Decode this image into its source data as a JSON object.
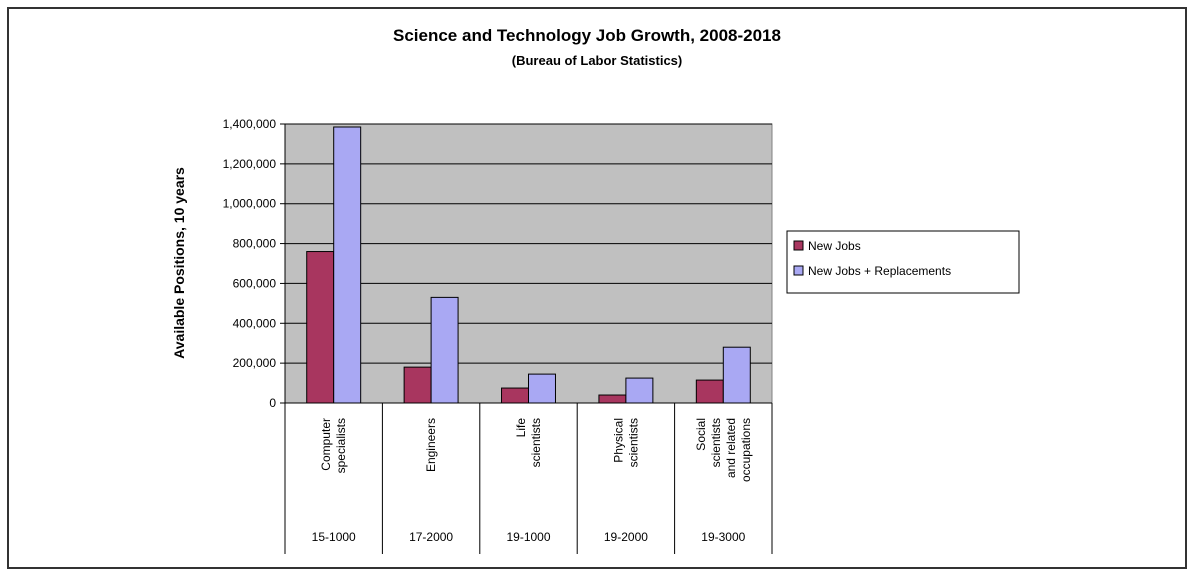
{
  "chart_data": {
    "type": "bar",
    "title": "Science and Technology Job Growth, 2008-2018",
    "subtitle": "(Bureau of Labor Statistics)",
    "xlabel": "",
    "ylabel": "Available Positions, 10 years",
    "ylim": [
      0,
      1400000
    ],
    "yticks": [
      "0",
      "200,000",
      "400,000",
      "600,000",
      "800,000",
      "1,000,000",
      "1,200,000",
      "1,400,000"
    ],
    "grid": true,
    "legend_position": "right",
    "categories": [
      {
        "lines": [
          "Computer",
          "specialists"
        ],
        "code": "15-1000"
      },
      {
        "lines": [
          "Engineers"
        ],
        "code": "17-2000"
      },
      {
        "lines": [
          "Life",
          "scientists"
        ],
        "code": "19-1000"
      },
      {
        "lines": [
          "Physical",
          "scientists"
        ],
        "code": "19-2000"
      },
      {
        "lines": [
          "Social",
          "scientists",
          "and related",
          "occupations"
        ],
        "code": "19-3000"
      }
    ],
    "series": [
      {
        "name": "New Jobs",
        "color": "#a8365f",
        "values": [
          760000,
          180000,
          75000,
          40000,
          115000
        ]
      },
      {
        "name": "New Jobs + Replacements",
        "color": "#a9a8f3",
        "values": [
          1385000,
          530000,
          145000,
          125000,
          280000
        ]
      }
    ]
  }
}
